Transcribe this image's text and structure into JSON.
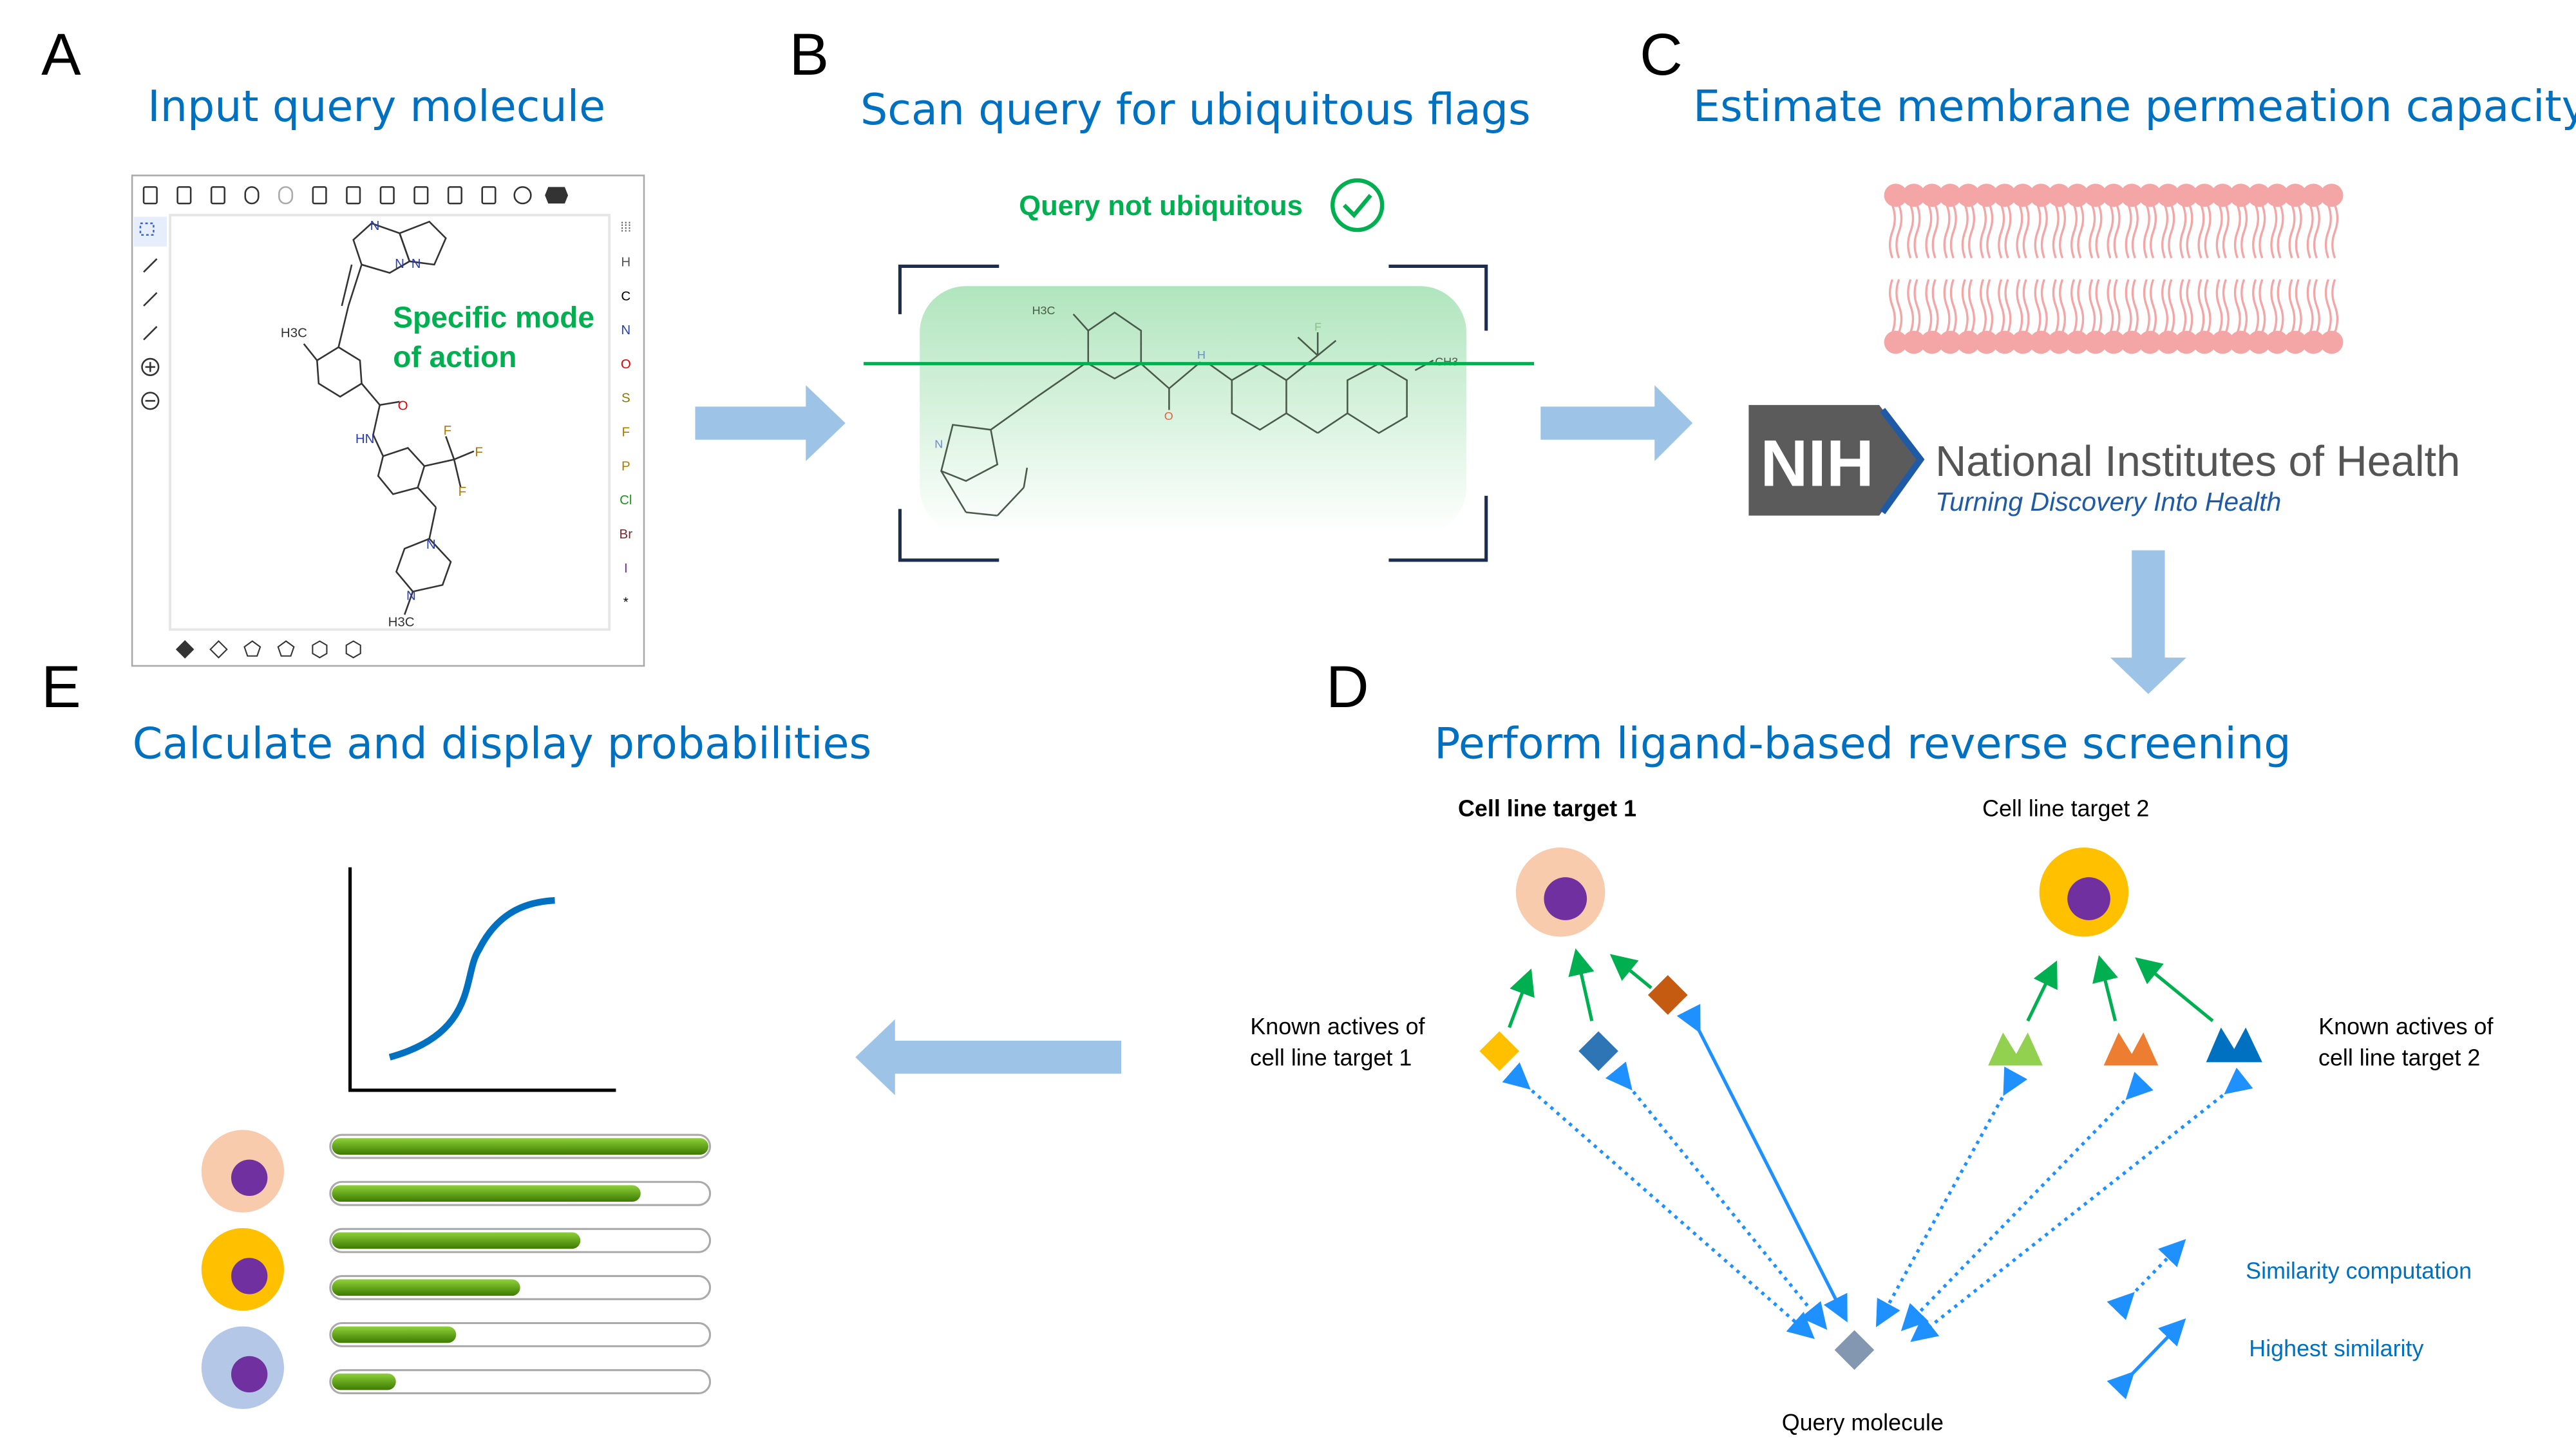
{
  "panels": {
    "a": {
      "letter": "A",
      "title": "Input query molecule"
    },
    "b": {
      "letter": "B",
      "title": "Scan query for ubiquitous flags"
    },
    "c": {
      "letter": "C",
      "title": "Estimate membrane permeation capacity"
    },
    "d": {
      "letter": "D",
      "title": "Perform ligand-based reverse screening"
    },
    "e": {
      "letter": "E",
      "title": "Calculate and display probabilities"
    }
  },
  "editor": {
    "toolbar_icons": [
      "new-icon",
      "open-icon",
      "save-icon",
      "undo-icon",
      "redo-icon",
      "cut-icon",
      "copy-icon",
      "paste-icon",
      "zoom-clear-icon",
      "2d-icon",
      "query-icon",
      "settings-icon",
      "info-icon"
    ],
    "left_tools": [
      "select-icon",
      "eraser-icon",
      "bond-icon",
      "chain-icon",
      "zoom-in-icon",
      "zoom-out-icon"
    ],
    "elements": [
      {
        "label": "H",
        "color": "#555555"
      },
      {
        "label": "C",
        "color": "#000000"
      },
      {
        "label": "N",
        "color": "#2b3fb0"
      },
      {
        "label": "O",
        "color": "#e00000"
      },
      {
        "label": "S",
        "color": "#8a7a00"
      },
      {
        "label": "F",
        "color": "#b07a00"
      },
      {
        "label": "P",
        "color": "#b07a00"
      },
      {
        "label": "Cl",
        "color": "#1a9a1a"
      },
      {
        "label": "Br",
        "color": "#7a2a2a"
      },
      {
        "label": "I",
        "color": "#7030a0"
      },
      {
        "label": "*",
        "color": "#000000"
      }
    ],
    "bottom_tools": [
      "template-icon",
      "pyrrole-icon",
      "cyclobutane-icon",
      "cyclopentane-icon",
      "cyclohexane-icon",
      "benzene-icon"
    ],
    "annotation_line1": "Specific mode",
    "annotation_line2": "of action",
    "atom_labels": {
      "methyl_top": "H3C",
      "n1": "N",
      "n2": "N",
      "n3": "N",
      "o": "O",
      "hn": "HN",
      "f1": "F",
      "f2": "F",
      "f3": "F",
      "pn1": "N",
      "pn2": "N",
      "methyl_bottom": "H3C"
    }
  },
  "scan": {
    "status": "Query not ubiquitous",
    "status_icon": "check-circle-icon",
    "status_color": "#00b050",
    "atom_labels": {
      "methyl": "H3C",
      "nh": "H",
      "n": "N",
      "o": "O",
      "f": "F",
      "ch3": "CH3"
    }
  },
  "nih": {
    "logo_text": "NIH",
    "name": "National Institutes of Health",
    "tagline": "Turning Discovery Into Health"
  },
  "screening": {
    "target1_label": "Cell line target 1",
    "target2_label": "Cell line target 2",
    "actives1_line1": "Known actives of",
    "actives1_line2": "cell line target 1",
    "actives2_line1": "Known actives of",
    "actives2_line2": "cell line target 2",
    "query_label": "Query molecule",
    "legend": [
      {
        "label": "Similarity computation",
        "style": "dotted"
      },
      {
        "label": "Highest similarity",
        "style": "solid"
      }
    ],
    "colors": {
      "target1": "#f8cbad",
      "target2": "#ffc000",
      "nucleus": "#7030a0",
      "arrow_blue": "#1e90ff",
      "arrow_green": "#00b050"
    }
  },
  "probabilities": {
    "cells": [
      {
        "color": "#f8cbad"
      },
      {
        "color": "#ffc000"
      },
      {
        "color": "#b4c7e7"
      }
    ],
    "bars": [
      1.0,
      0.82,
      0.66,
      0.5,
      0.33,
      0.17
    ],
    "bar_color": "#5aa000"
  }
}
